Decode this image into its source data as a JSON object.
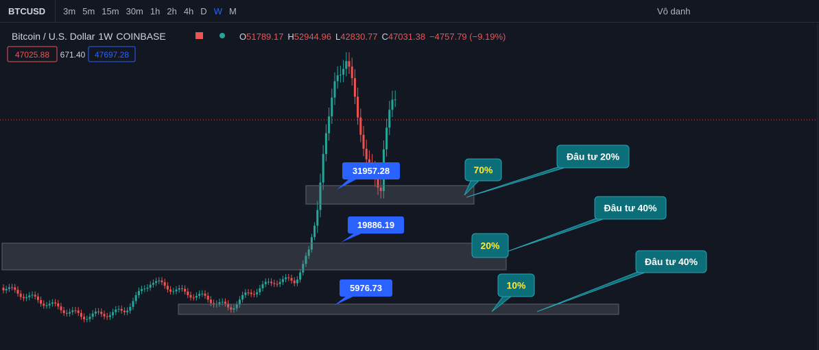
{
  "toolbar": {
    "symbol": "BTCUSD",
    "intervals": [
      "3m",
      "5m",
      "15m",
      "30m",
      "1h",
      "2h",
      "4h",
      "D",
      "W",
      "M"
    ],
    "active_interval": "W",
    "layout_name": "Vô danh"
  },
  "legend": {
    "title": "Bitcoin / U.S. Dollar",
    "interval": "1W",
    "exchange": "COINBASE",
    "ohlc": [
      {
        "label": "O",
        "value": "51789.17"
      },
      {
        "label": "H",
        "value": "52944.96"
      },
      {
        "label": "L",
        "value": "42830.77"
      },
      {
        "label": "C",
        "value": "47031.38"
      }
    ],
    "change": "−4757.79 (−9.19%)",
    "price_boxes": [
      "47025.88",
      "671.40",
      "47697.28"
    ]
  },
  "price_labels": [
    "31957.28",
    "19886.19",
    "5976.73"
  ],
  "zone_labels": [
    "70%",
    "20%",
    "10%"
  ],
  "callouts": [
    "Đâu tư 20%",
    "Đâu tư 40%",
    "Đâu tư 40%"
  ]
}
